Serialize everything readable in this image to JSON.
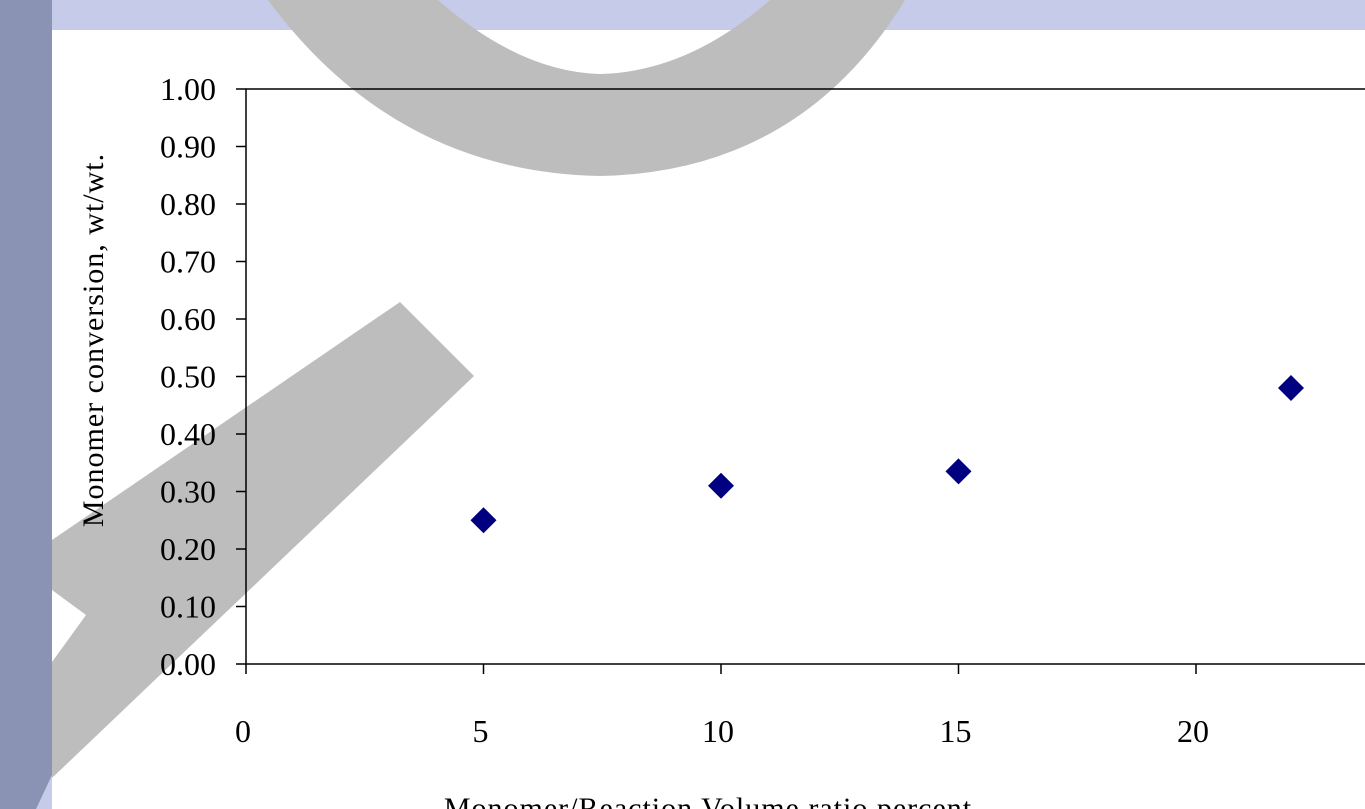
{
  "slide": {
    "band_color": "#c5cbe9",
    "left_bar_color": "#8b93b4",
    "watermark_color": "#bdbdbd"
  },
  "chart_data": {
    "type": "scatter",
    "title": "",
    "xlabel": "Monomer/Reaction Volume ratio percent",
    "ylabel": "Monomer conversion, wt/wt.",
    "xlim": [
      0,
      24
    ],
    "ylim": [
      0,
      1
    ],
    "x_ticks": [
      "0",
      "5",
      "10",
      "15",
      "20"
    ],
    "y_ticks": [
      "0.00",
      "0.10",
      "0.20",
      "0.30",
      "0.40",
      "0.50",
      "0.60",
      "0.70",
      "0.80",
      "0.90",
      "1.00"
    ],
    "grid": false,
    "legend": "none",
    "marker": "diamond",
    "marker_color": "#000080",
    "points": [
      {
        "x": 5,
        "y": 0.25
      },
      {
        "x": 10,
        "y": 0.31
      },
      {
        "x": 15,
        "y": 0.335
      },
      {
        "x": 22,
        "y": 0.48
      }
    ]
  }
}
